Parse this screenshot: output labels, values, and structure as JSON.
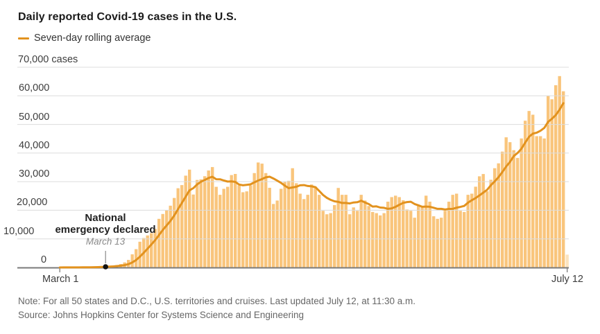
{
  "chart": {
    "title": "Daily reported Covid-19 cases in the U.S.",
    "legend_label": "Seven-day rolling average",
    "y_axis_labels": [
      "70,000 cases",
      "60,000",
      "50,000",
      "40,000",
      "30,000",
      "20,000",
      "10,000",
      "0"
    ],
    "x_axis": {
      "start_label": "March 1",
      "end_label": "July 12"
    },
    "annotation": {
      "line1": "National",
      "line2": "emergency declared",
      "date": "March 13"
    }
  },
  "footer": {
    "note": "Note: For all 50 states and D.C., U.S. territories and cruises. Last updated July 12, at 11:30 a.m.",
    "source": "Source: Johns Hopkins Center for Systems Science and Engineering"
  },
  "chart_data": {
    "type": "bar",
    "title": "Daily reported Covid-19 cases in the U.S.",
    "x_start": "March 1",
    "x_end": "July 12",
    "num_days": 134,
    "ylabel": "cases",
    "ylim": [
      0,
      70000
    ],
    "y_tick_step": 10000,
    "grid": true,
    "legend_position": "top-left",
    "overlay_line": {
      "name": "Seven-day rolling average",
      "derived_from_daily_values": true,
      "window": 7,
      "ends_at_day_index": 132
    },
    "annotation": {
      "label": "National emergency declared",
      "date": "March 13",
      "day_index": 12,
      "value": 0
    },
    "partial_last_bar": {
      "date": "July 12",
      "note": "partial day, last updated 11:30 a.m."
    },
    "colors": {
      "bar": "#F9C57C",
      "partial_bar": "#FBE3BE",
      "line": "#E2921E",
      "grid": "#DCDCDC",
      "axis": "#7A7A7A",
      "annotation_dot": "#111111"
    },
    "daily_values": [
      7,
      24,
      20,
      31,
      70,
      45,
      105,
      95,
      120,
      170,
      290,
      350,
      400,
      530,
      730,
      860,
      1200,
      1770,
      2650,
      4600,
      6400,
      9000,
      10300,
      11200,
      12000,
      13500,
      17000,
      18700,
      20000,
      21600,
      24300,
      27700,
      28800,
      32100,
      34200,
      25500,
      30600,
      30800,
      31900,
      33900,
      35100,
      28200,
      25400,
      27500,
      28200,
      32300,
      32700,
      28700,
      26300,
      26600,
      28700,
      33000,
      36700,
      36300,
      33000,
      27850,
      22200,
      23400,
      27500,
      29900,
      30300,
      34700,
      29450,
      25800,
      23900,
      25400,
      29000,
      28240,
      25400,
      19800,
      18600,
      19000,
      21800,
      27800,
      25400,
      25400,
      18600,
      21000,
      19800,
      25400,
      23400,
      21500,
      19400,
      19000,
      18200,
      19000,
      23000,
      24600,
      25100,
      24600,
      23500,
      20270,
      19800,
      17400,
      21500,
      21500,
      25100,
      23000,
      17900,
      17000,
      17400,
      19800,
      23000,
      25400,
      25800,
      19800,
      19400,
      25400,
      25800,
      28240,
      31870,
      32670,
      26630,
      30660,
      34700,
      36400,
      40500,
      45500,
      43800,
      41000,
      38300,
      45100,
      51300,
      54700,
      53400,
      45900,
      45900,
      45100,
      60000,
      58800,
      63700,
      66900,
      61600,
      4500
    ]
  }
}
